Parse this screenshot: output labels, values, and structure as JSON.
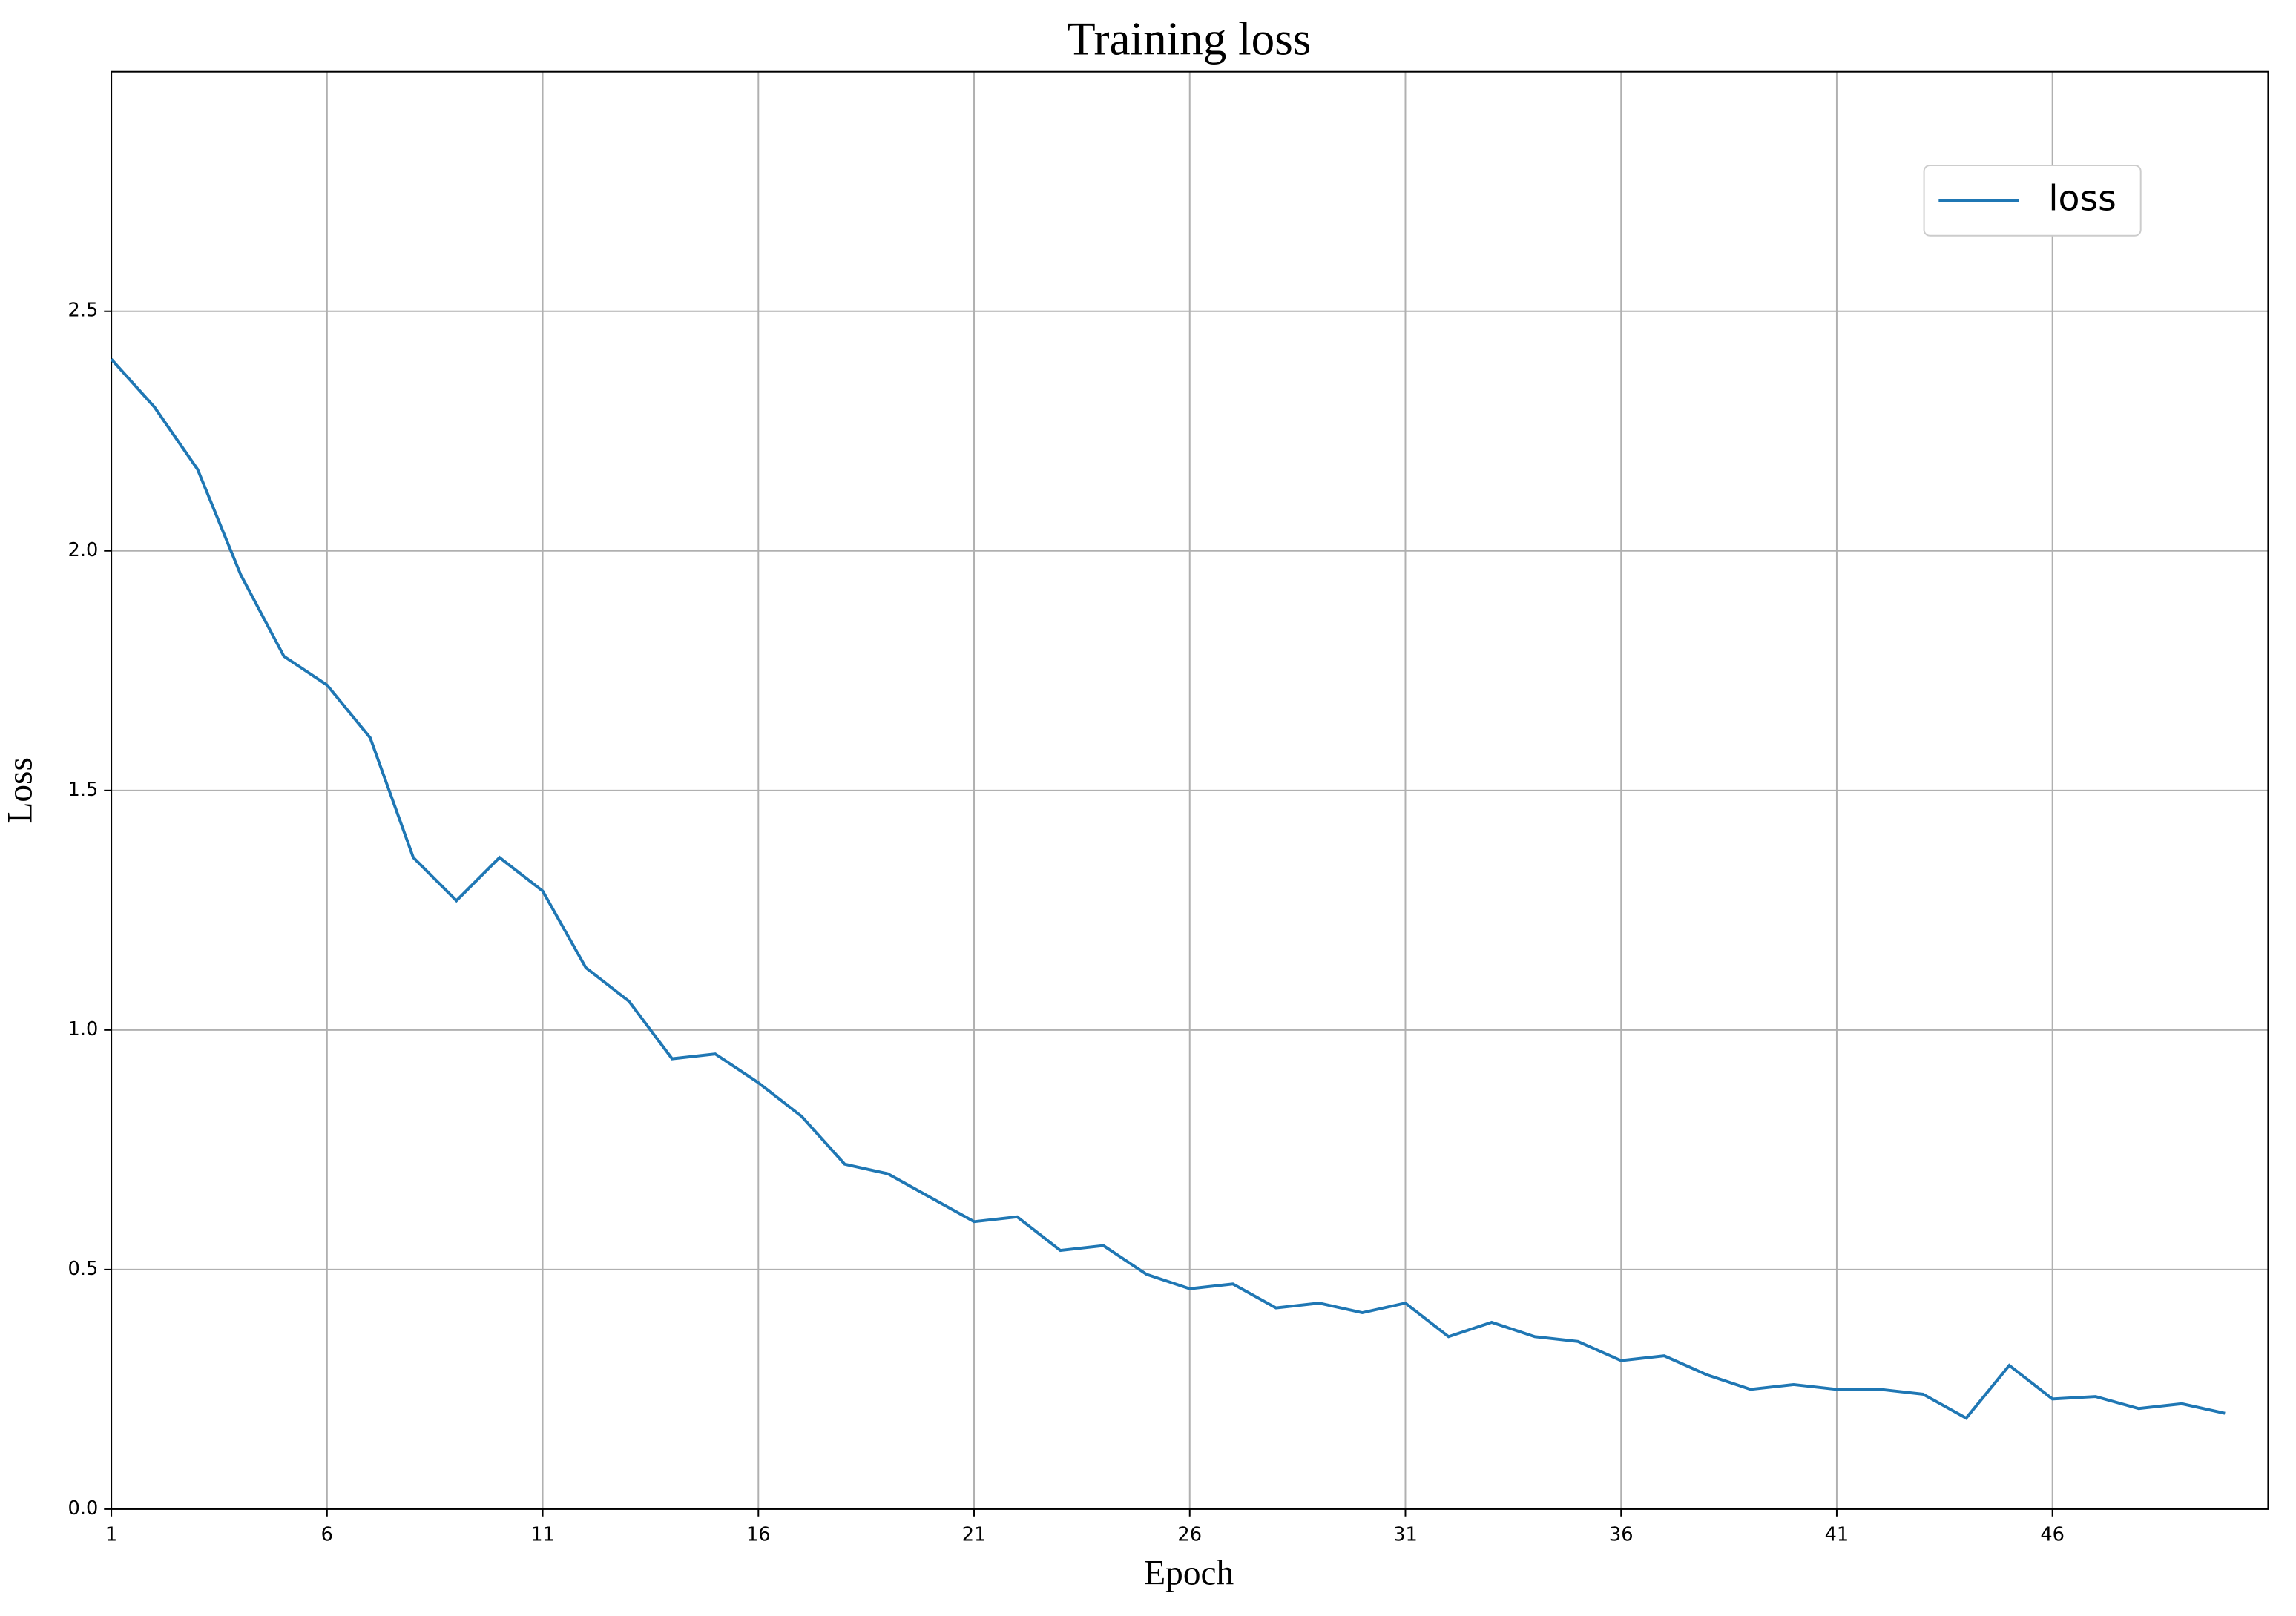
{
  "chart_data": {
    "type": "line",
    "title": "Training loss",
    "x_label": "Epoch",
    "y_label": "Loss",
    "x": [
      1,
      2,
      3,
      4,
      5,
      6,
      7,
      8,
      9,
      10,
      11,
      12,
      13,
      14,
      15,
      16,
      17,
      18,
      19,
      20,
      21,
      22,
      23,
      24,
      25,
      26,
      27,
      28,
      29,
      30,
      31,
      32,
      33,
      34,
      35,
      36,
      37,
      38,
      39,
      40,
      41,
      42,
      43,
      44,
      45,
      46,
      47,
      48,
      49,
      50
    ],
    "series": [
      {
        "name": "loss",
        "color": "#1f77b4",
        "values": [
          2.4,
          2.3,
          2.17,
          1.95,
          1.78,
          1.72,
          1.61,
          1.36,
          1.27,
          1.36,
          1.29,
          1.13,
          1.06,
          0.94,
          0.95,
          0.89,
          0.82,
          0.72,
          0.7,
          0.65,
          0.6,
          0.61,
          0.54,
          0.55,
          0.49,
          0.46,
          0.47,
          0.42,
          0.43,
          0.41,
          0.43,
          0.36,
          0.39,
          0.36,
          0.35,
          0.31,
          0.32,
          0.28,
          0.25,
          0.26,
          0.25,
          0.25,
          0.24,
          0.19,
          0.3,
          0.23,
          0.235,
          0.21,
          0.22,
          0.2
        ]
      }
    ],
    "xlim": [
      1,
      51
    ],
    "xticks": [
      1,
      6,
      11,
      16,
      21,
      26,
      31,
      36,
      41,
      46
    ],
    "ylim": [
      0,
      3.0
    ],
    "yticks": [
      {
        "value": 0,
        "label": "0.0"
      },
      0.5,
      {
        "value": 1,
        "label": "1.0"
      },
      1.5,
      {
        "value": 2,
        "label": "2.0"
      },
      2.5
    ],
    "grid": true,
    "legend": "upper right"
  }
}
